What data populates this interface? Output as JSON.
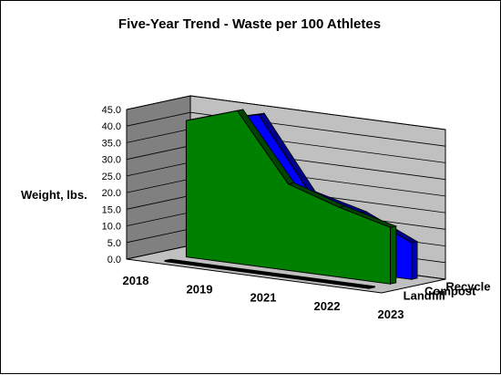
{
  "chart_data": {
    "type": "area",
    "title": "Five-Year Trend - Waste per 100 Athletes",
    "ylabel": "Weight, lbs.",
    "xlabel": "",
    "categories": [
      "2018",
      "2019",
      "2021",
      "2022",
      "2023"
    ],
    "ylim": [
      0,
      45
    ],
    "yticks": [
      "0.0",
      "5.0",
      "10.0",
      "15.0",
      "20.0",
      "25.0",
      "30.0",
      "35.0",
      "40.0",
      "45.0"
    ],
    "grid": true,
    "series": [
      {
        "name": "Landfill",
        "values": [
          0.3,
          0.3,
          0.3,
          0.3,
          0.3
        ],
        "color": "#000000"
      },
      {
        "name": "Compost",
        "values": [
          41.0,
          46.0,
          26.0,
          21.0,
          17.0
        ],
        "color": "#008000"
      },
      {
        "name": "Recycle",
        "values": [
          39.5,
          43.5,
          22.0,
          18.0,
          11.0
        ],
        "color": "#0000ff"
      }
    ],
    "series_axis_labels": [
      "Recycle",
      "Compost",
      "Landfill"
    ]
  }
}
